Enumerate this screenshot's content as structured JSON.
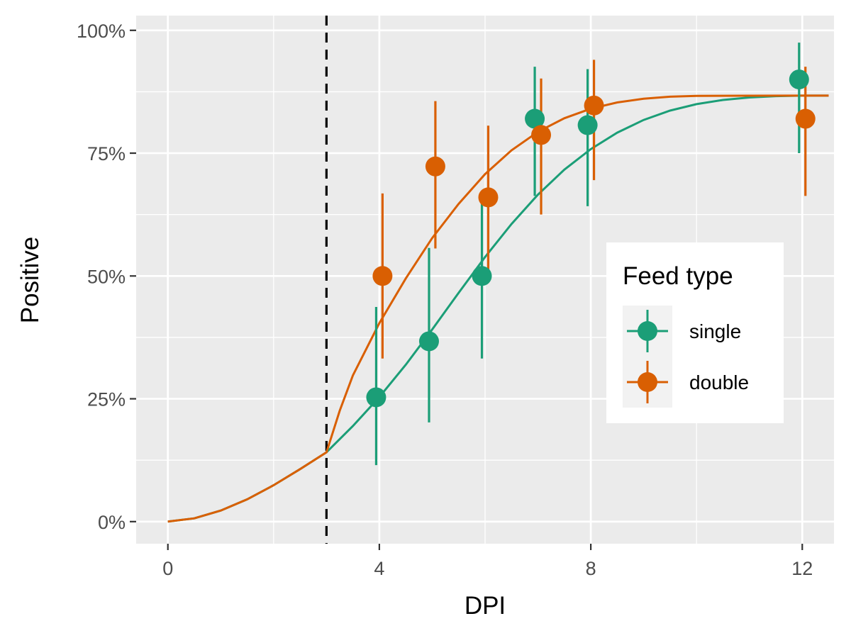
{
  "chart_data": {
    "type": "scatter",
    "xlabel": "DPI",
    "ylabel": "Positive",
    "xlim": [
      -0.6,
      12.6
    ],
    "ylim": [
      -0.045,
      1.03
    ],
    "x_ticks": [
      0,
      4,
      8,
      12
    ],
    "y_ticks": [
      0,
      0.25,
      0.5,
      0.75,
      1.0
    ],
    "x_tick_labels": [
      "0",
      "4",
      "8",
      "12"
    ],
    "y_tick_labels": [
      "0%",
      "25%",
      "50%",
      "75%",
      "100%"
    ],
    "grid": true,
    "reference_line": {
      "x": 3,
      "style": "dashed",
      "color": "#000000"
    },
    "legend": {
      "title": "Feed type",
      "position": "right",
      "entries": [
        "single",
        "double"
      ]
    },
    "series": [
      {
        "name": "single",
        "color": "#1b9e77",
        "points": [
          {
            "x": 4,
            "y": 0.253,
            "ymin": 0.115,
            "ymax": 0.437
          },
          {
            "x": 5,
            "y": 0.367,
            "ymin": 0.202,
            "ymax": 0.557
          },
          {
            "x": 6,
            "y": 0.5,
            "ymin": 0.332,
            "ymax": 0.668
          },
          {
            "x": 7,
            "y": 0.82,
            "ymin": 0.663,
            "ymax": 0.926
          },
          {
            "x": 8,
            "y": 0.807,
            "ymin": 0.642,
            "ymax": 0.921
          },
          {
            "x": 12,
            "y": 0.9,
            "ymin": 0.75,
            "ymax": 0.975
          }
        ],
        "curve": [
          [
            0,
            0
          ],
          [
            0.5,
            0.0067
          ],
          [
            1,
            0.0226
          ],
          [
            1.5,
            0.0453
          ],
          [
            2,
            0.074
          ],
          [
            2.5,
            0.1068
          ],
          [
            3,
            0.1412
          ],
          [
            3.5,
            0.1946
          ],
          [
            4,
            0.2536
          ],
          [
            4.5,
            0.3193
          ],
          [
            5,
            0.3912
          ],
          [
            5.5,
            0.4657
          ],
          [
            6,
            0.5385
          ],
          [
            6.5,
            0.6058
          ],
          [
            7,
            0.6655
          ],
          [
            7.5,
            0.7164
          ],
          [
            8,
            0.7583
          ],
          [
            8.5,
            0.7918
          ],
          [
            9,
            0.8176
          ],
          [
            9.5,
            0.8366
          ],
          [
            10,
            0.8498
          ],
          [
            10.5,
            0.8583
          ],
          [
            11,
            0.8634
          ],
          [
            11.5,
            0.8661
          ],
          [
            12,
            0.8671
          ],
          [
            12.5,
            0.8671
          ]
        ]
      },
      {
        "name": "double",
        "color": "#d95f02",
        "points": [
          {
            "x": 4,
            "y": 0.5,
            "ymin": 0.332,
            "ymax": 0.668
          },
          {
            "x": 5,
            "y": 0.723,
            "ymin": 0.556,
            "ymax": 0.856
          },
          {
            "x": 6,
            "y": 0.66,
            "ymin": 0.5,
            "ymax": 0.806
          },
          {
            "x": 7,
            "y": 0.787,
            "ymin": 0.625,
            "ymax": 0.902
          },
          {
            "x": 8,
            "y": 0.847,
            "ymin": 0.695,
            "ymax": 0.94
          },
          {
            "x": 12,
            "y": 0.82,
            "ymin": 0.663,
            "ymax": 0.926
          }
        ],
        "curve": [
          [
            0,
            0
          ],
          [
            0.5,
            0.0067
          ],
          [
            1,
            0.0226
          ],
          [
            1.5,
            0.0453
          ],
          [
            2,
            0.074
          ],
          [
            2.5,
            0.1068
          ],
          [
            3,
            0.1412
          ],
          [
            3.25,
            0.2256
          ],
          [
            3.5,
            0.2976
          ],
          [
            4,
            0.4039
          ],
          [
            4.5,
            0.4949
          ],
          [
            5,
            0.5774
          ],
          [
            5.5,
            0.6467
          ],
          [
            6,
            0.7073
          ],
          [
            6.5,
            0.7558
          ],
          [
            7,
            0.7933
          ],
          [
            7.5,
            0.8211
          ],
          [
            8,
            0.8405
          ],
          [
            8.5,
            0.8532
          ],
          [
            9,
            0.8608
          ],
          [
            9.5,
            0.8649
          ],
          [
            10,
            0.8666
          ],
          [
            11,
            0.867
          ],
          [
            12,
            0.8671
          ],
          [
            12.5,
            0.8671
          ]
        ]
      }
    ]
  }
}
